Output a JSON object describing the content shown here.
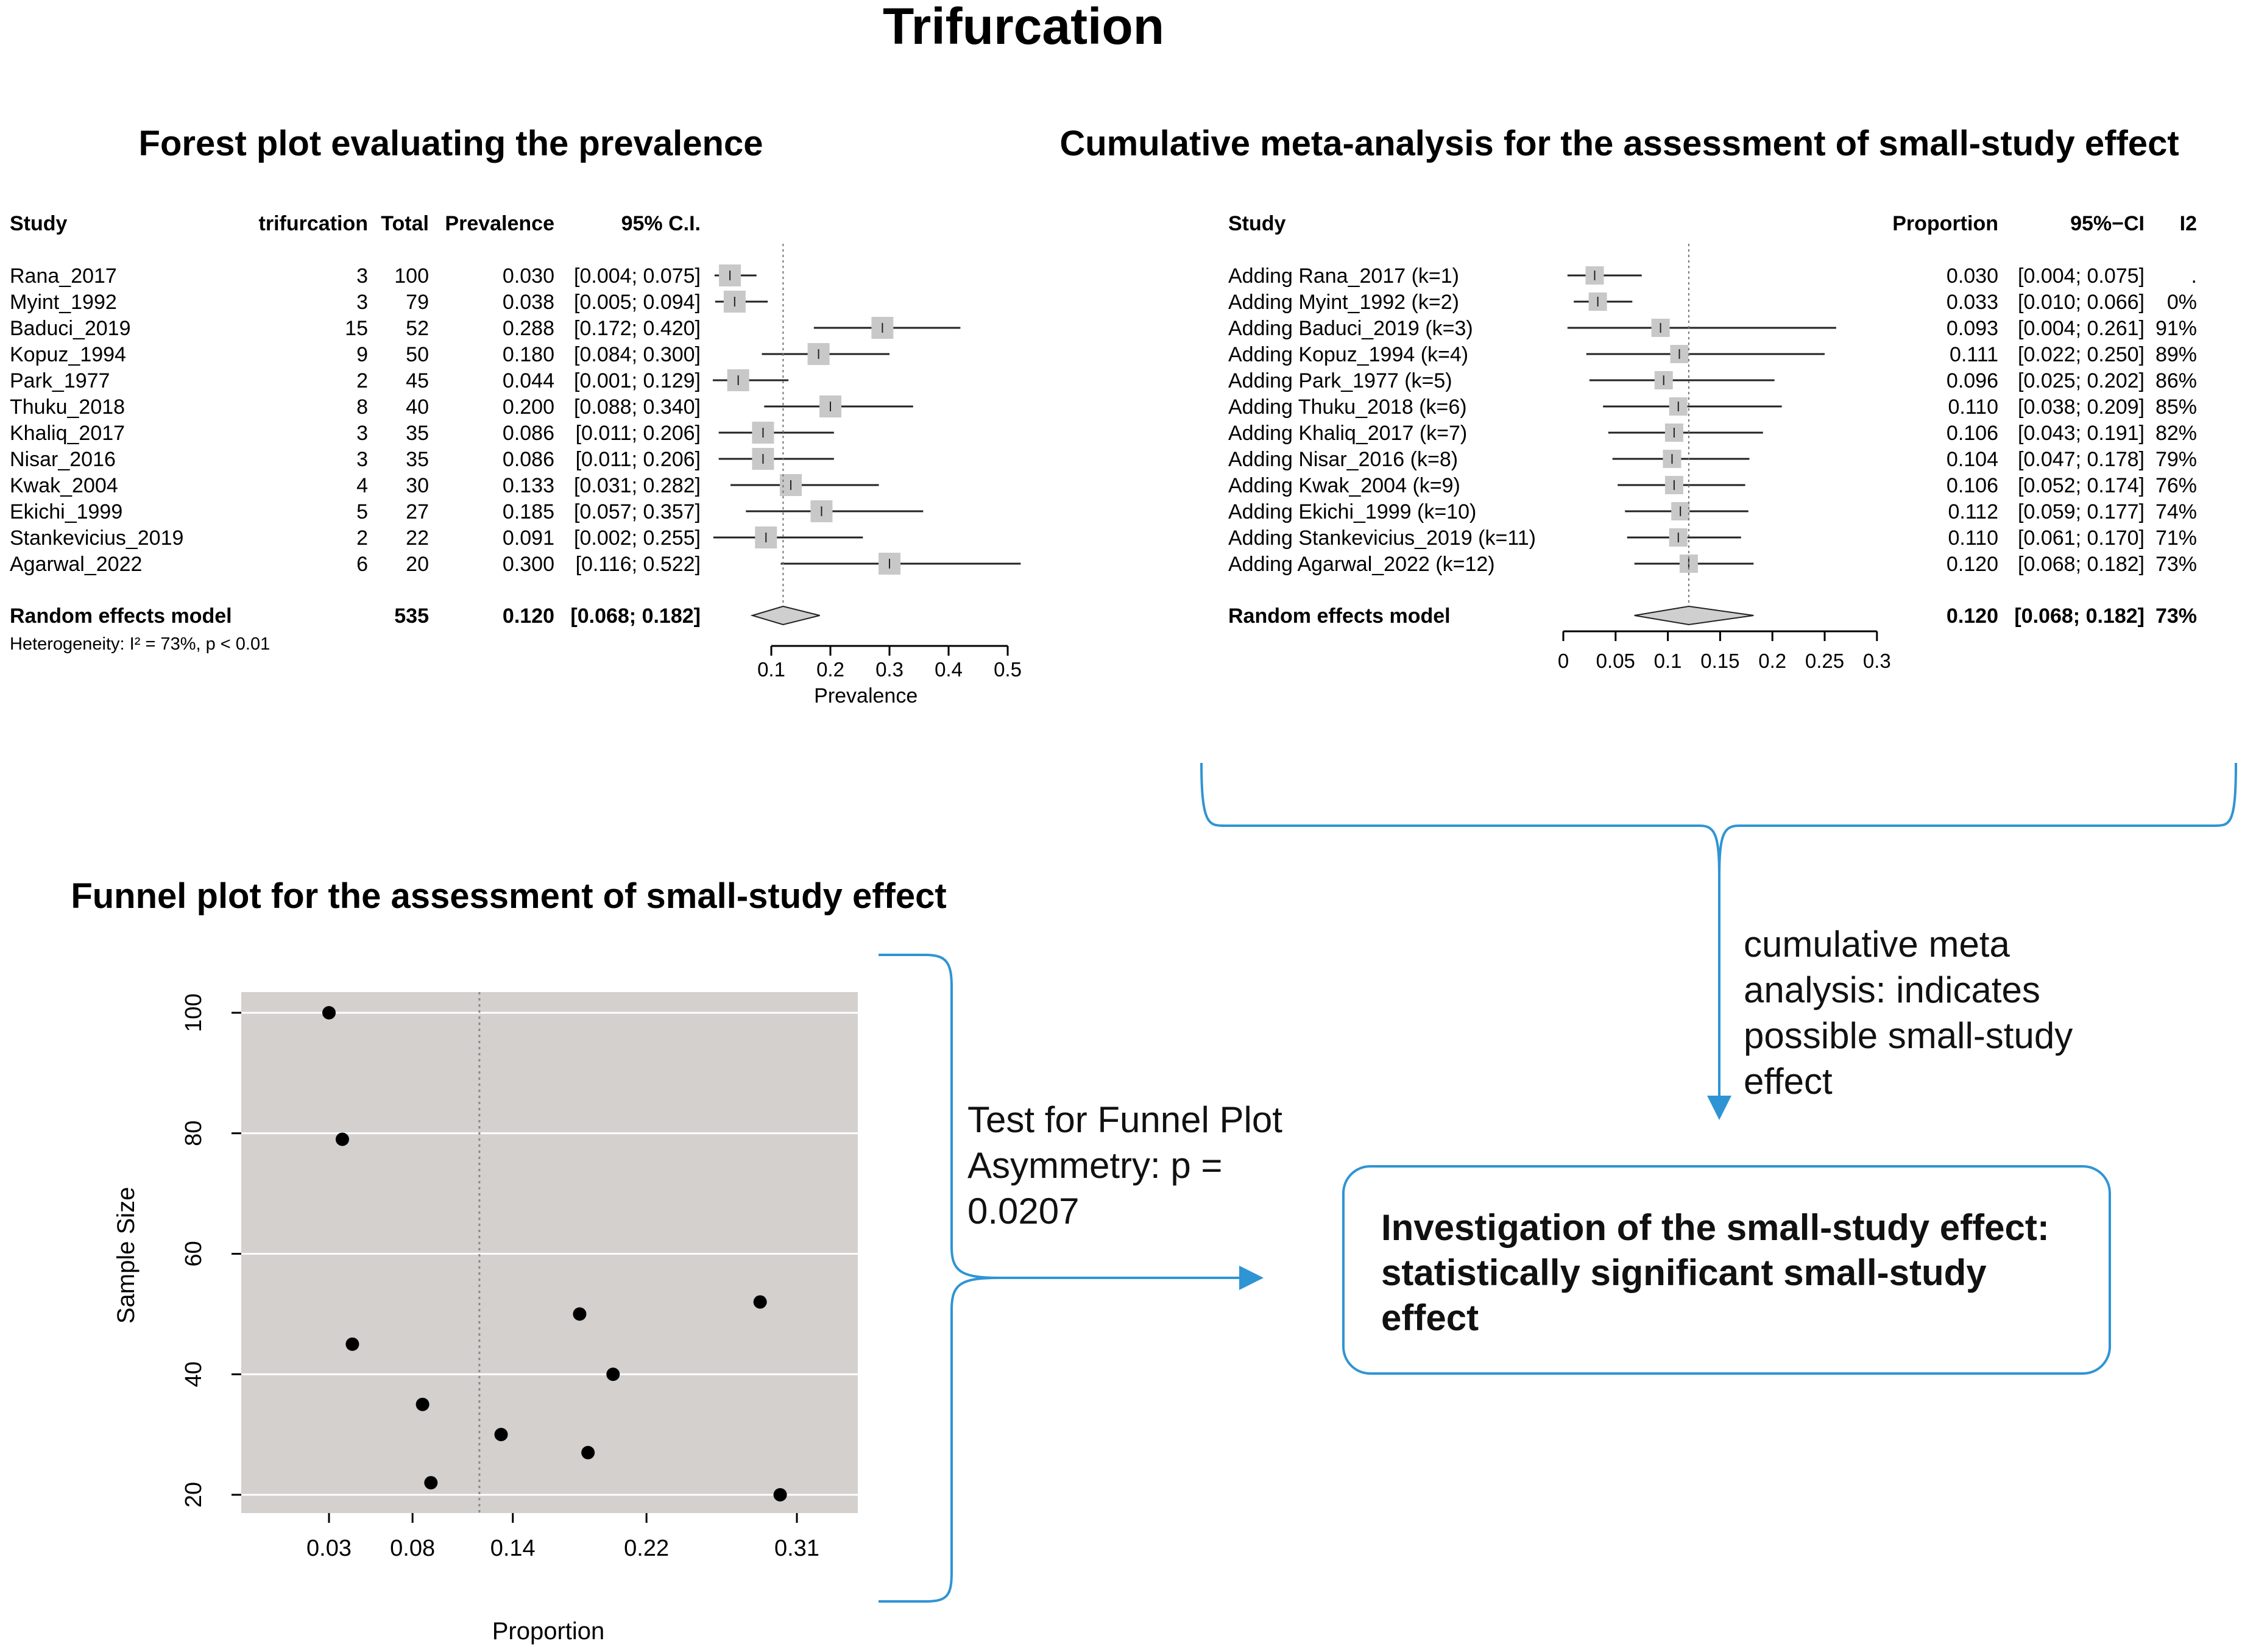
{
  "title": "Trifurcation",
  "colors": {
    "accent": "#2f94d4",
    "box_fill": "#c8c8c8",
    "diamond_fill": "#cfcfcf",
    "funnel_bg": "#d3d0ce"
  },
  "forest": {
    "title": "Forest plot evaluating the prevalence",
    "headers": {
      "study": "Study",
      "events": "trifurcation",
      "total": "Total",
      "prev": "Prevalence",
      "ci": "95% C.I."
    },
    "studies": [
      {
        "name": "Rana_2017",
        "events": "3",
        "total": "100",
        "prev": "0.030",
        "ci": "[0.004; 0.075]",
        "est": 0.03,
        "lo": 0.004,
        "hi": 0.075
      },
      {
        "name": "Myint_1992",
        "events": "3",
        "total": "79",
        "prev": "0.038",
        "ci": "[0.005; 0.094]",
        "est": 0.038,
        "lo": 0.005,
        "hi": 0.094
      },
      {
        "name": "Baduci_2019",
        "events": "15",
        "total": "52",
        "prev": "0.288",
        "ci": "[0.172; 0.420]",
        "est": 0.288,
        "lo": 0.172,
        "hi": 0.42
      },
      {
        "name": "Kopuz_1994",
        "events": "9",
        "total": "50",
        "prev": "0.180",
        "ci": "[0.084; 0.300]",
        "est": 0.18,
        "lo": 0.084,
        "hi": 0.3
      },
      {
        "name": "Park_1977",
        "events": "2",
        "total": "45",
        "prev": "0.044",
        "ci": "[0.001; 0.129]",
        "est": 0.044,
        "lo": 0.001,
        "hi": 0.129
      },
      {
        "name": "Thuku_2018",
        "events": "8",
        "total": "40",
        "prev": "0.200",
        "ci": "[0.088; 0.340]",
        "est": 0.2,
        "lo": 0.088,
        "hi": 0.34
      },
      {
        "name": "Khaliq_2017",
        "events": "3",
        "total": "35",
        "prev": "0.086",
        "ci": "[0.011; 0.206]",
        "est": 0.086,
        "lo": 0.011,
        "hi": 0.206
      },
      {
        "name": "Nisar_2016",
        "events": "3",
        "total": "35",
        "prev": "0.086",
        "ci": "[0.011; 0.206]",
        "est": 0.086,
        "lo": 0.011,
        "hi": 0.206
      },
      {
        "name": "Kwak_2004",
        "events": "4",
        "total": "30",
        "prev": "0.133",
        "ci": "[0.031; 0.282]",
        "est": 0.133,
        "lo": 0.031,
        "hi": 0.282
      },
      {
        "name": "Ekichi_1999",
        "events": "5",
        "total": "27",
        "prev": "0.185",
        "ci": "[0.057; 0.357]",
        "est": 0.185,
        "lo": 0.057,
        "hi": 0.357
      },
      {
        "name": "Stankevicius_2019",
        "events": "2",
        "total": "22",
        "prev": "0.091",
        "ci": "[0.002; 0.255]",
        "est": 0.091,
        "lo": 0.002,
        "hi": 0.255
      },
      {
        "name": "Agarwal_2022",
        "events": "6",
        "total": "20",
        "prev": "0.300",
        "ci": "[0.116; 0.522]",
        "est": 0.3,
        "lo": 0.116,
        "hi": 0.522
      }
    ],
    "summary": {
      "name": "Random effects model",
      "total": "535",
      "prev": "0.120",
      "ci": "[0.068; 0.182]",
      "est": 0.12,
      "lo": 0.068,
      "hi": 0.182
    },
    "heterogeneity": "Heterogeneity: I² = 73%, p < 0.01",
    "axis": {
      "ticks": [
        0.1,
        0.2,
        0.3,
        0.4,
        0.5
      ],
      "tick_labels": [
        "0.1",
        "0.2",
        "0.3",
        "0.4",
        "0.5"
      ],
      "label": "Prevalence"
    }
  },
  "cumulative": {
    "title": "Cumulative meta-analysis for the assessment of small-study effect",
    "headers": {
      "study": "Study",
      "prop": "Proportion",
      "ci": "95%−CI",
      "i2": "I2"
    },
    "rows": [
      {
        "name": "Adding Rana_2017 (k=1)",
        "prop": "0.030",
        "ci": "[0.004; 0.075]",
        "i2": ".",
        "est": 0.03,
        "lo": 0.004,
        "hi": 0.075
      },
      {
        "name": "Adding Myint_1992 (k=2)",
        "prop": "0.033",
        "ci": "[0.010; 0.066]",
        "i2": "0%",
        "est": 0.033,
        "lo": 0.01,
        "hi": 0.066
      },
      {
        "name": "Adding Baduci_2019 (k=3)",
        "prop": "0.093",
        "ci": "[0.004; 0.261]",
        "i2": "91%",
        "est": 0.093,
        "lo": 0.004,
        "hi": 0.261
      },
      {
        "name": "Adding Kopuz_1994 (k=4)",
        "prop": "0.111",
        "ci": "[0.022; 0.250]",
        "i2": "89%",
        "est": 0.111,
        "lo": 0.022,
        "hi": 0.25
      },
      {
        "name": "Adding Park_1977 (k=5)",
        "prop": "0.096",
        "ci": "[0.025; 0.202]",
        "i2": "86%",
        "est": 0.096,
        "lo": 0.025,
        "hi": 0.202
      },
      {
        "name": "Adding Thuku_2018 (k=6)",
        "prop": "0.110",
        "ci": "[0.038; 0.209]",
        "i2": "85%",
        "est": 0.11,
        "lo": 0.038,
        "hi": 0.209
      },
      {
        "name": "Adding Khaliq_2017 (k=7)",
        "prop": "0.106",
        "ci": "[0.043; 0.191]",
        "i2": "82%",
        "est": 0.106,
        "lo": 0.043,
        "hi": 0.191
      },
      {
        "name": "Adding Nisar_2016 (k=8)",
        "prop": "0.104",
        "ci": "[0.047; 0.178]",
        "i2": "79%",
        "est": 0.104,
        "lo": 0.047,
        "hi": 0.178
      },
      {
        "name": "Adding Kwak_2004 (k=9)",
        "prop": "0.106",
        "ci": "[0.052; 0.174]",
        "i2": "76%",
        "est": 0.106,
        "lo": 0.052,
        "hi": 0.174
      },
      {
        "name": "Adding Ekichi_1999 (k=10)",
        "prop": "0.112",
        "ci": "[0.059; 0.177]",
        "i2": "74%",
        "est": 0.112,
        "lo": 0.059,
        "hi": 0.177
      },
      {
        "name": "Adding Stankevicius_2019 (k=11)",
        "prop": "0.110",
        "ci": "[0.061; 0.170]",
        "i2": "71%",
        "est": 0.11,
        "lo": 0.061,
        "hi": 0.17
      },
      {
        "name": "Adding Agarwal_2022 (k=12)",
        "prop": "0.120",
        "ci": "[0.068; 0.182]",
        "i2": "73%",
        "est": 0.12,
        "lo": 0.068,
        "hi": 0.182
      }
    ],
    "summary": {
      "name": "Random effects model",
      "prop": "0.120",
      "ci": "[0.068; 0.182]",
      "i2": "73%",
      "est": 0.12,
      "lo": 0.068,
      "hi": 0.182
    },
    "axis": {
      "ticks": [
        0,
        0.05,
        0.1,
        0.15,
        0.2,
        0.25,
        0.3
      ],
      "tick_labels": [
        "0",
        "0.05",
        "0.1",
        "0.15",
        "0.2",
        "0.25",
        "0.3"
      ]
    }
  },
  "funnel": {
    "title": "Funnel plot for the assessment of small-study effect",
    "xlabel": "Proportion",
    "ylabel": "Sample Size",
    "x_ticks": [
      0.03,
      0.08,
      0.14,
      0.22,
      0.31
    ],
    "x_tick_labels": [
      "0.03",
      "0.08",
      "0.14",
      "0.22",
      "0.31"
    ],
    "y_ticks": [
      20,
      40,
      60,
      80,
      100
    ],
    "y_tick_labels": [
      "20",
      "40",
      "60",
      "80",
      "100"
    ],
    "reference": 0.12,
    "points": [
      {
        "x": 0.03,
        "y": 100
      },
      {
        "x": 0.038,
        "y": 79
      },
      {
        "x": 0.288,
        "y": 52
      },
      {
        "x": 0.18,
        "y": 50
      },
      {
        "x": 0.044,
        "y": 45
      },
      {
        "x": 0.2,
        "y": 40
      },
      {
        "x": 0.086,
        "y": 35
      },
      {
        "x": 0.133,
        "y": 30
      },
      {
        "x": 0.185,
        "y": 27
      },
      {
        "x": 0.091,
        "y": 22
      },
      {
        "x": 0.3,
        "y": 20
      }
    ]
  },
  "chart_data": [
    {
      "type": "forest",
      "title": "Forest plot evaluating the prevalence",
      "xlabel": "Prevalence",
      "categories": [
        "Rana_2017",
        "Myint_1992",
        "Baduci_2019",
        "Kopuz_1994",
        "Park_1977",
        "Thuku_2018",
        "Khaliq_2017",
        "Nisar_2016",
        "Kwak_2004",
        "Ekichi_1999",
        "Stankevicius_2019",
        "Agarwal_2022"
      ],
      "series": [
        {
          "name": "Prevalence",
          "values": [
            0.03,
            0.038,
            0.288,
            0.18,
            0.044,
            0.2,
            0.086,
            0.086,
            0.133,
            0.185,
            0.091,
            0.3
          ]
        },
        {
          "name": "CI lower",
          "values": [
            0.004,
            0.005,
            0.172,
            0.084,
            0.001,
            0.088,
            0.011,
            0.011,
            0.031,
            0.057,
            0.002,
            0.116
          ]
        },
        {
          "name": "CI upper",
          "values": [
            0.075,
            0.094,
            0.42,
            0.3,
            0.129,
            0.34,
            0.206,
            0.206,
            0.282,
            0.357,
            0.255,
            0.522
          ]
        }
      ],
      "pooled": {
        "estimate": 0.12,
        "ci": [
          0.068,
          0.182
        ]
      },
      "xlim": [
        0.1,
        0.5
      ]
    },
    {
      "type": "forest",
      "title": "Cumulative meta-analysis for the assessment of small-study effect",
      "categories": [
        "k=1",
        "k=2",
        "k=3",
        "k=4",
        "k=5",
        "k=6",
        "k=7",
        "k=8",
        "k=9",
        "k=10",
        "k=11",
        "k=12"
      ],
      "series": [
        {
          "name": "Proportion",
          "values": [
            0.03,
            0.033,
            0.093,
            0.111,
            0.096,
            0.11,
            0.106,
            0.104,
            0.106,
            0.112,
            0.11,
            0.12
          ]
        },
        {
          "name": "CI lower",
          "values": [
            0.004,
            0.01,
            0.004,
            0.022,
            0.025,
            0.038,
            0.043,
            0.047,
            0.052,
            0.059,
            0.061,
            0.068
          ]
        },
        {
          "name": "CI upper",
          "values": [
            0.075,
            0.066,
            0.261,
            0.25,
            0.202,
            0.209,
            0.191,
            0.178,
            0.174,
            0.177,
            0.17,
            0.182
          ]
        }
      ],
      "pooled": {
        "estimate": 0.12,
        "ci": [
          0.068,
          0.182
        ]
      },
      "xlim": [
        0,
        0.3
      ]
    },
    {
      "type": "scatter",
      "title": "Funnel plot for the assessment of small-study effect",
      "xlabel": "Proportion",
      "ylabel": "Sample Size",
      "x": [
        0.03,
        0.038,
        0.288,
        0.18,
        0.044,
        0.2,
        0.086,
        0.133,
        0.185,
        0.091,
        0.3
      ],
      "y": [
        100,
        79,
        52,
        50,
        45,
        40,
        35,
        30,
        27,
        22,
        20
      ],
      "ylim": [
        17,
        103
      ]
    }
  ],
  "annotations": {
    "cumulative_note": "cumulative meta analysis: indicates possible small-study effect",
    "test_note": "Test for Funnel Plot Asymmetry: p = 0.0207",
    "conclusion": "Investigation of the small-study effect: statistically significant small-study effect"
  }
}
